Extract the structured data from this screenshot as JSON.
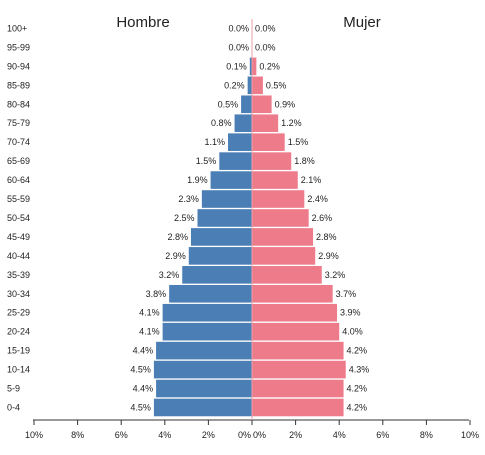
{
  "chart_data": {
    "type": "bar",
    "orientation": "horizontal",
    "layout": "population-pyramid",
    "title": "",
    "xlabel": "",
    "ylabel": "",
    "categories": [
      "100+",
      "95-99",
      "90-94",
      "85-89",
      "80-84",
      "75-79",
      "70-74",
      "65-69",
      "60-64",
      "55-59",
      "50-54",
      "45-49",
      "40-44",
      "35-39",
      "30-34",
      "25-29",
      "20-24",
      "15-19",
      "10-14",
      "5-9",
      "0-4"
    ],
    "series": [
      {
        "name": "Hombre",
        "color": "#4a7eb5",
        "values": [
          0.0,
          0.0,
          0.1,
          0.2,
          0.5,
          0.8,
          1.1,
          1.5,
          1.9,
          2.3,
          2.5,
          2.8,
          2.9,
          3.2,
          3.8,
          4.1,
          4.1,
          4.4,
          4.5,
          4.4,
          4.5
        ],
        "labels": [
          "0.0%",
          "0.0%",
          "0.1%",
          "0.2%",
          "0.5%",
          "0.8%",
          "1.1%",
          "1.5%",
          "1.9%",
          "2.3%",
          "2.5%",
          "2.8%",
          "2.9%",
          "3.2%",
          "3.8%",
          "4.1%",
          "4.1%",
          "4.4%",
          "4.5%",
          "4.4%",
          "4.5%"
        ]
      },
      {
        "name": "Mujer",
        "color": "#ee7b8a",
        "values": [
          0.0,
          0.0,
          0.2,
          0.5,
          0.9,
          1.2,
          1.5,
          1.8,
          2.1,
          2.4,
          2.6,
          2.8,
          2.9,
          3.2,
          3.7,
          3.9,
          4.0,
          4.2,
          4.3,
          4.2,
          4.2
        ],
        "labels": [
          "0.0%",
          "0.0%",
          "0.2%",
          "0.5%",
          "0.9%",
          "1.2%",
          "1.5%",
          "1.8%",
          "2.1%",
          "2.4%",
          "2.6%",
          "2.8%",
          "2.9%",
          "3.2%",
          "3.7%",
          "3.9%",
          "4.0%",
          "4.2%",
          "4.3%",
          "4.2%",
          "4.2%"
        ]
      }
    ],
    "xlim": [
      0,
      10
    ],
    "x_ticks_left": [
      {
        "value": 10,
        "label": "10%"
      },
      {
        "value": 8,
        "label": "8%"
      },
      {
        "value": 6,
        "label": "6%"
      },
      {
        "value": 4,
        "label": "4%"
      },
      {
        "value": 2,
        "label": "2%"
      },
      {
        "value": 0,
        "label": "0%"
      }
    ],
    "x_ticks_right": [
      {
        "value": 0,
        "label": "0%"
      },
      {
        "value": 2,
        "label": "2%"
      },
      {
        "value": 4,
        "label": "4%"
      },
      {
        "value": 6,
        "label": "6%"
      },
      {
        "value": 8,
        "label": "8%"
      },
      {
        "value": 10,
        "label": "10%"
      }
    ],
    "grid": false,
    "legend": "none"
  }
}
